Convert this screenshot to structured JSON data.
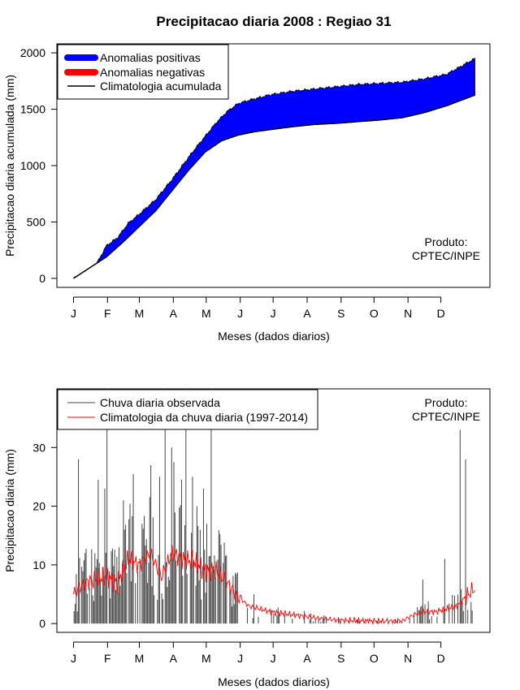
{
  "title": "Precipitacao diaria 2008 : Regiao 31",
  "colors": {
    "positive": "#0000ff",
    "negative": "#ff0000",
    "observed": "#444444",
    "climatology": "#ff0000",
    "line": "#000000"
  },
  "chart_data": [
    {
      "type": "area",
      "ylabel": "Precipitacao diaria acumulada (mm)",
      "xlabel": "Meses (dados diarios)",
      "ylim": [
        -80,
        2080
      ],
      "yticks": [
        0,
        500,
        1000,
        1500,
        2000
      ],
      "months": [
        "J",
        "F",
        "M",
        "A",
        "M",
        "J",
        "J",
        "A",
        "S",
        "O",
        "N",
        "D"
      ],
      "legend": [
        "Anomalias positivas",
        "Anomalias negativas",
        "Climatologia acumulada"
      ],
      "product": [
        "Produto:",
        "CPTEC/INPE"
      ],
      "climatology_anchor": {
        "day": [
          0,
          15,
          30,
          45,
          60,
          75,
          90,
          105,
          120,
          135,
          150,
          165,
          180,
          200,
          220,
          240,
          260,
          280,
          300,
          320,
          340,
          366
        ],
        "value": [
          0,
          95,
          190,
          320,
          460,
          600,
          780,
          960,
          1120,
          1220,
          1270,
          1300,
          1320,
          1345,
          1365,
          1375,
          1390,
          1405,
          1425,
          1470,
          1530,
          1625
        ]
      },
      "observed_anchor": {
        "day": [
          0,
          10,
          20,
          30,
          40,
          50,
          60,
          75,
          90,
          100,
          110,
          120,
          130,
          140,
          150,
          160,
          180,
          200,
          220,
          240,
          260,
          280,
          300,
          320,
          340,
          355,
          366
        ],
        "value": [
          0,
          40,
          110,
          290,
          360,
          490,
          570,
          700,
          880,
          1010,
          1140,
          1260,
          1380,
          1480,
          1550,
          1580,
          1630,
          1660,
          1680,
          1700,
          1720,
          1730,
          1740,
          1770,
          1810,
          1890,
          1950
        ]
      }
    },
    {
      "type": "bar",
      "ylabel": "Precipitacao diaria (mm)",
      "xlabel": "Meses (dados diarios)",
      "ylim": [
        -1.5,
        40
      ],
      "yticks": [
        0,
        10,
        20,
        30
      ],
      "months": [
        "J",
        "F",
        "M",
        "A",
        "M",
        "J",
        "J",
        "A",
        "S",
        "O",
        "N",
        "D"
      ],
      "legend": [
        "Chuva diaria observada",
        "Climatologia da chuva diaria (1997-2014)"
      ],
      "product": [
        "Produto:",
        "CPTEC/INPE"
      ],
      "peaks": [
        {
          "day": 4,
          "value": 28
        },
        {
          "day": 22,
          "value": 24.5
        },
        {
          "day": 28,
          "value": 23
        },
        {
          "day": 30,
          "value": 40
        },
        {
          "day": 45,
          "value": 21
        },
        {
          "day": 54,
          "value": 25.5
        },
        {
          "day": 62,
          "value": 17
        },
        {
          "day": 70,
          "value": 27
        },
        {
          "day": 78,
          "value": 25
        },
        {
          "day": 83,
          "value": 40
        },
        {
          "day": 89,
          "value": 30
        },
        {
          "day": 91,
          "value": 27.5
        },
        {
          "day": 98,
          "value": 24.5
        },
        {
          "day": 102,
          "value": 40
        },
        {
          "day": 108,
          "value": 25
        },
        {
          "day": 112,
          "value": 20
        },
        {
          "day": 118,
          "value": 23
        },
        {
          "day": 121,
          "value": 17
        },
        {
          "day": 125,
          "value": 40
        },
        {
          "day": 138,
          "value": 11.5
        },
        {
          "day": 318,
          "value": 7.5
        },
        {
          "day": 338,
          "value": 11
        },
        {
          "day": 352,
          "value": 33
        },
        {
          "day": 357,
          "value": 28
        }
      ],
      "climatology_anchor": {
        "day": [
          0,
          10,
          20,
          30,
          40,
          45,
          50,
          60,
          70,
          80,
          90,
          100,
          110,
          120,
          130,
          140,
          150,
          160,
          170,
          180,
          200,
          220,
          240,
          260,
          280,
          300,
          310,
          320,
          330,
          340,
          350,
          360,
          366
        ],
        "value": [
          5,
          7,
          7.5,
          8,
          7,
          9,
          11,
          10,
          12,
          8,
          12,
          11,
          10.5,
          9,
          9,
          7,
          4.5,
          3,
          2.5,
          2,
          1.5,
          1,
          0.6,
          0.5,
          0.4,
          0.5,
          1.5,
          2,
          2,
          2.5,
          3,
          5,
          6
        ]
      }
    }
  ]
}
